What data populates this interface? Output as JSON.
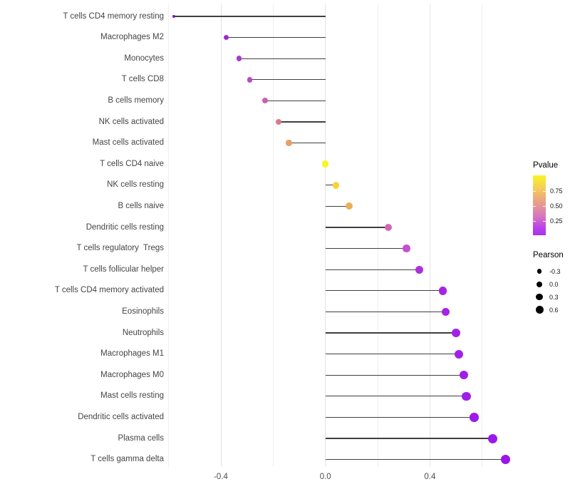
{
  "chart_data": {
    "type": "scatter",
    "subtype": "lollipop",
    "title": "",
    "xlabel": "",
    "ylabel": "",
    "xlim": [
      -0.66,
      0.75
    ],
    "x_tick_values": [
      -0.4,
      0.0,
      0.4
    ],
    "x_tick_labels": [
      "-0.4",
      "0.0",
      "0.4"
    ],
    "gridlines_major": [
      -0.4,
      0.0,
      0.4
    ],
    "gridlines_minor": [
      -0.6,
      -0.2,
      0.2,
      0.6
    ],
    "grid": "vertical-only",
    "baseline_x": 0.0,
    "legend_position": "right",
    "points": [
      {
        "label": "T cells CD4 memory resting",
        "pearson": -0.58,
        "color": "#7b16c4",
        "diameter": 4
      },
      {
        "label": "Macrophages M2",
        "pearson": -0.38,
        "color": "#9d28d2",
        "diameter": 7
      },
      {
        "label": "Monocytes",
        "pearson": -0.33,
        "color": "#ab38cc",
        "diameter": 7.5
      },
      {
        "label": "T cells CD8",
        "pearson": -0.29,
        "color": "#b94ac5",
        "diameter": 7.5
      },
      {
        "label": "B cells memory",
        "pearson": -0.23,
        "color": "#ca5fb2",
        "diameter": 8
      },
      {
        "label": "NK cells activated",
        "pearson": -0.18,
        "color": "#d8798e",
        "diameter": 8
      },
      {
        "label": "Mast cells activated",
        "pearson": -0.14,
        "color": "#e59f6d",
        "diameter": 8.5
      },
      {
        "label": "T cells CD4 naive",
        "pearson": 0.0,
        "color": "#fbf51e",
        "diameter": 9.5
      },
      {
        "label": "NK cells resting",
        "pearson": 0.04,
        "color": "#f5d43a",
        "diameter": 9.5
      },
      {
        "label": "B cells naive",
        "pearson": 0.09,
        "color": "#eaaf5a",
        "diameter": 10
      },
      {
        "label": "Dendritic cells resting",
        "pearson": 0.24,
        "color": "#d167b8",
        "diameter": 10
      },
      {
        "label": "T cells regulatory  Tregs",
        "pearson": 0.31,
        "color": "#c44fd2",
        "diameter": 10.5
      },
      {
        "label": "T cells follicular helper",
        "pearson": 0.36,
        "color": "#ae30dc",
        "diameter": 11
      },
      {
        "label": "T cells CD4 memory activated",
        "pearson": 0.45,
        "color": "#a526e2",
        "diameter": 11.5
      },
      {
        "label": "Eosinophils",
        "pearson": 0.46,
        "color": "#a424e3",
        "diameter": 11.5
      },
      {
        "label": "Neutrophils",
        "pearson": 0.5,
        "color": "#a122e5",
        "diameter": 12
      },
      {
        "label": "Macrophages M1",
        "pearson": 0.51,
        "color": "#a122e5",
        "diameter": 12
      },
      {
        "label": "Macrophages M0",
        "pearson": 0.53,
        "color": "#9f1fe7",
        "diameter": 12
      },
      {
        "label": "Mast cells resting",
        "pearson": 0.54,
        "color": "#9e1ee7",
        "diameter": 12.5
      },
      {
        "label": "Dendritic cells activated",
        "pearson": 0.57,
        "color": "#9c1be9",
        "diameter": 12.5
      },
      {
        "label": "Plasma cells",
        "pearson": 0.64,
        "color": "#9a18eb",
        "diameter": 13
      },
      {
        "label": "T cells gamma delta",
        "pearson": 0.69,
        "color": "#9915ec",
        "diameter": 13.5
      }
    ],
    "legend_pvalue": {
      "title": "Pvalue",
      "bar_range": [
        0.01,
        1.01
      ],
      "ticks": [
        {
          "value": 0.75,
          "label": "0.75"
        },
        {
          "value": 0.5,
          "label": "0.50"
        },
        {
          "value": 0.25,
          "label": "0.25"
        }
      ],
      "gradient_stops": [
        {
          "color": "#f9f327",
          "pos": 0
        },
        {
          "color": "#f3cd5a",
          "pos": 22
        },
        {
          "color": "#eba87e",
          "pos": 40
        },
        {
          "color": "#e18f9f",
          "pos": 55
        },
        {
          "color": "#d672c4",
          "pos": 70
        },
        {
          "color": "#bc45e6",
          "pos": 86
        },
        {
          "color": "#a92ff0",
          "pos": 100
        }
      ]
    },
    "legend_pearson": {
      "title": "Pearson",
      "items": [
        {
          "value": -0.3,
          "label": "-0.3",
          "diameter": 6.5
        },
        {
          "value": 0.0,
          "label": "0.0",
          "diameter": 8
        },
        {
          "value": 0.3,
          "label": "0.3",
          "diameter": 9.5
        },
        {
          "value": 0.6,
          "label": "0.6",
          "diameter": 11
        }
      ],
      "dot_color": "#000000"
    },
    "stem_color": "#3f3f3f",
    "axis_text_color": "#4d4d4d"
  }
}
